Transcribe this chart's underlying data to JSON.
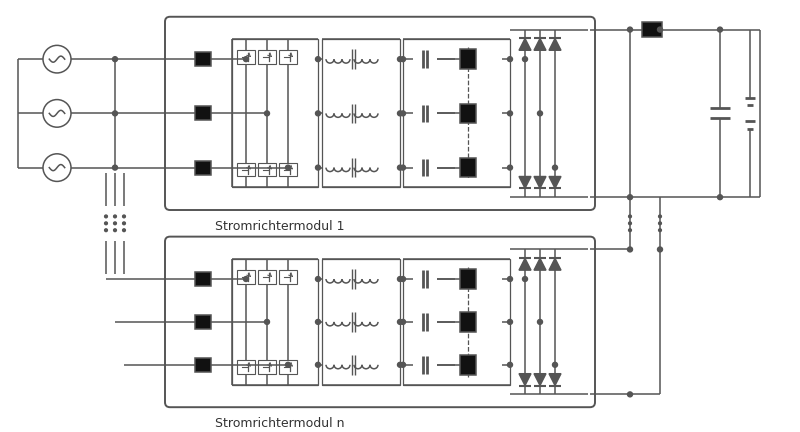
{
  "bg_color": "#ffffff",
  "line_color": "#555555",
  "fill_color": "#111111",
  "label_module1": "Stromrichtermodul 1",
  "label_module2": "Stromrichtermodul n",
  "fig_width": 8.0,
  "fig_height": 4.32,
  "dpi": 100
}
